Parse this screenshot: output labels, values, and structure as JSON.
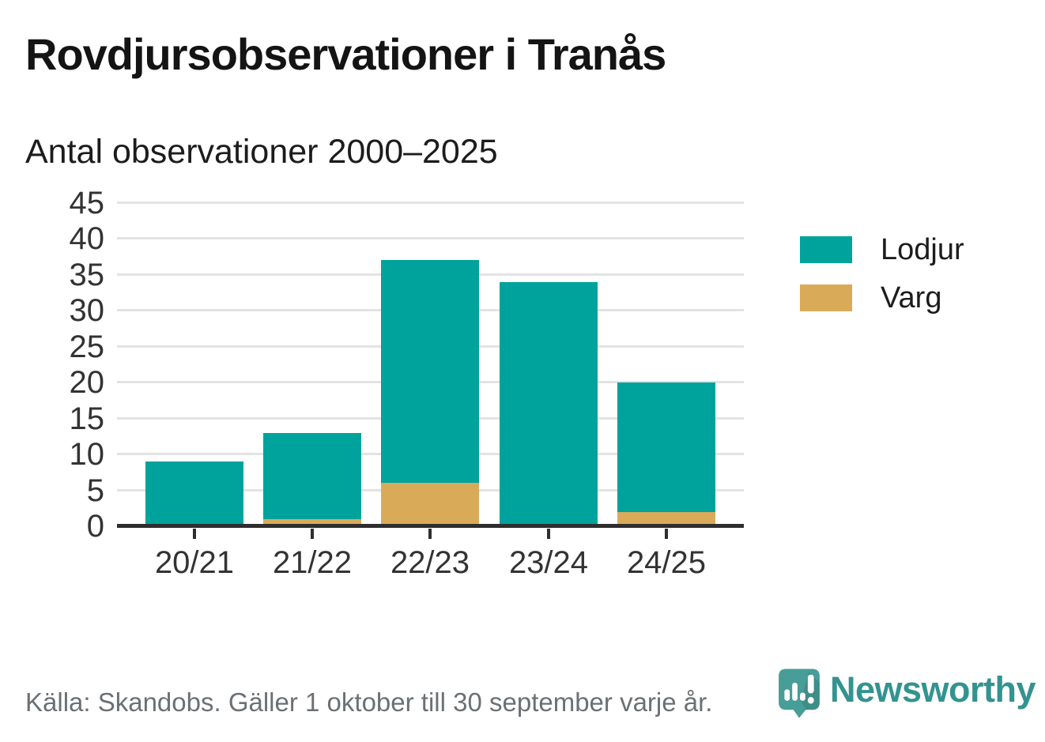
{
  "title": "Rovdjursobservationer i Tranås",
  "subtitle": "Antal observationer 2000–2025",
  "footer": {
    "source": "Källa: Skandobs. Gäller 1 oktober till 30 september varje år.",
    "brand": "Newsworthy"
  },
  "colors": {
    "lodjur": "#00a39b",
    "varg": "#d9ab59",
    "gridline": "#e3e3e3",
    "axis": "#2e2e2e",
    "tick_label": "#333333",
    "source_text": "#6b7074",
    "brand_teal": "#339390"
  },
  "chart_data": {
    "type": "bar",
    "stacked": true,
    "title": "Rovdjursobservationer i Tranås",
    "subtitle": "Antal observationer 2000–2025",
    "categories": [
      "20/21",
      "21/22",
      "22/23",
      "23/24",
      "24/25"
    ],
    "series": [
      {
        "name": "Lodjur",
        "color": "#00a39b",
        "values": [
          9,
          12,
          31,
          34,
          18
        ]
      },
      {
        "name": "Varg",
        "color": "#d9ab59",
        "values": [
          0,
          1,
          6,
          0,
          2
        ]
      }
    ],
    "stack_order_bottom_up": [
      "Varg",
      "Lodjur"
    ],
    "totals": [
      9,
      13,
      37,
      34,
      20
    ],
    "xlabel": "",
    "ylabel": "",
    "ylim": [
      0,
      45
    ],
    "yticks": [
      0,
      5,
      10,
      15,
      20,
      25,
      30,
      35,
      40,
      45
    ],
    "grid": true,
    "legend_position": "right"
  }
}
